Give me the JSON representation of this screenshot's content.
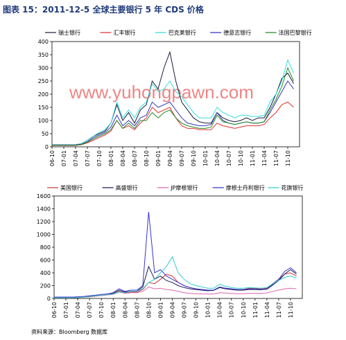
{
  "title": "图表 15：2011-12-5 全球主要银行 5 年 CDS 价格",
  "watermark": "www.yuhongpawn.com",
  "source": "资料来源：Bloomberg 数据库",
  "chart_data": [
    {
      "type": "line",
      "categories": [
        "06-10",
        null,
        "07-01",
        null,
        "07-04",
        null,
        "07-07",
        null,
        "07-10",
        null,
        "08-01",
        null,
        "08-04",
        null,
        "08-07",
        null,
        "08-10",
        null,
        "09-01",
        null,
        "09-04",
        null,
        "09-07",
        null,
        "09-10",
        null,
        "10-01",
        null,
        "10-04",
        null,
        "10-07",
        null,
        "10-10",
        null,
        "11-01",
        null,
        "11-04",
        null,
        "11-07",
        null,
        "11-10",
        null
      ],
      "ylim": [
        0,
        400
      ],
      "yticks": [
        0,
        50,
        100,
        150,
        200,
        250,
        300,
        350,
        400
      ],
      "grid": false,
      "series": [
        {
          "name": "瑞士银行",
          "color": "#1a1a3a",
          "values": [
            8,
            8,
            8,
            8,
            8,
            12,
            25,
            40,
            50,
            60,
            90,
            160,
            100,
            130,
            90,
            140,
            160,
            250,
            220,
            300,
            360,
            250,
            170,
            140,
            110,
            95,
            90,
            90,
            130,
            110,
            100,
            95,
            100,
            110,
            100,
            110,
            110,
            150,
            200,
            260,
            280,
            240
          ]
        },
        {
          "name": "汇丰银行",
          "color": "#e03030",
          "values": [
            5,
            5,
            5,
            5,
            5,
            8,
            15,
            25,
            35,
            45,
            60,
            100,
            70,
            80,
            65,
            90,
            110,
            150,
            130,
            140,
            150,
            110,
            80,
            70,
            70,
            65,
            65,
            65,
            90,
            80,
            75,
            70,
            75,
            80,
            80,
            80,
            85,
            110,
            130,
            160,
            170,
            150
          ]
        },
        {
          "name": "巴克莱银行",
          "color": "#33dddd",
          "values": [
            8,
            8,
            8,
            8,
            8,
            12,
            25,
            40,
            55,
            65,
            90,
            170,
            110,
            140,
            110,
            150,
            170,
            240,
            210,
            220,
            250,
            210,
            190,
            160,
            130,
            110,
            110,
            110,
            150,
            130,
            120,
            110,
            120,
            120,
            115,
            115,
            120,
            170,
            200,
            250,
            330,
            280
          ]
        },
        {
          "name": "德意志银行",
          "color": "#3333bb",
          "values": [
            7,
            7,
            7,
            7,
            7,
            10,
            20,
            35,
            45,
            55,
            75,
            120,
            80,
            100,
            80,
            110,
            120,
            170,
            150,
            160,
            170,
            140,
            110,
            90,
            85,
            80,
            80,
            85,
            130,
            100,
            90,
            85,
            90,
            95,
            90,
            90,
            95,
            130,
            170,
            210,
            250,
            220
          ]
        },
        {
          "name": "法国巴黎银行",
          "color": "#228b22",
          "values": [
            6,
            6,
            6,
            6,
            6,
            9,
            18,
            30,
            40,
            50,
            65,
            100,
            70,
            90,
            70,
            100,
            100,
            130,
            110,
            130,
            140,
            110,
            90,
            80,
            75,
            70,
            70,
            75,
            120,
            95,
            90,
            85,
            90,
            95,
            90,
            90,
            95,
            140,
            180,
            230,
            300,
            250
          ]
        }
      ]
    },
    {
      "type": "line",
      "categories": [
        "06-10",
        null,
        "07-01",
        null,
        "07-04",
        null,
        "07-07",
        null,
        "07-10",
        null,
        "08-01",
        null,
        "08-04",
        null,
        "08-07",
        null,
        "08-10",
        null,
        "09-01",
        null,
        "09-04",
        null,
        "09-07",
        null,
        "09-10",
        null,
        "10-01",
        null,
        "10-04",
        null,
        "10-07",
        null,
        "10-10",
        null,
        "11-01",
        null,
        "11-04",
        null,
        "11-07",
        null,
        "11-10",
        null
      ],
      "ylim": [
        0,
        1600
      ],
      "yticks": [
        0,
        200,
        400,
        600,
        800,
        1000,
        1200,
        1400,
        1600
      ],
      "grid": false,
      "series": [
        {
          "name": "美国银行",
          "color": "#cc3333",
          "values": [
            10,
            10,
            10,
            10,
            12,
            18,
            25,
            35,
            45,
            55,
            65,
            110,
            90,
            100,
            100,
            140,
            250,
            230,
            300,
            380,
            350,
            250,
            200,
            170,
            150,
            140,
            130,
            130,
            170,
            160,
            150,
            140,
            140,
            160,
            160,
            150,
            160,
            230,
            300,
            380,
            400,
            350
          ]
        },
        {
          "name": "高盛银行",
          "color": "#1a1a5a",
          "values": [
            20,
            20,
            20,
            20,
            25,
            30,
            40,
            50,
            60,
            70,
            80,
            130,
            100,
            110,
            110,
            180,
            500,
            300,
            350,
            280,
            250,
            200,
            170,
            150,
            140,
            130,
            120,
            125,
            170,
            150,
            140,
            130,
            130,
            140,
            140,
            135,
            145,
            210,
            280,
            380,
            450,
            380
          ]
        },
        {
          "name": "JP摩根银行",
          "color": "#dd66aa",
          "values": [
            15,
            15,
            15,
            15,
            18,
            22,
            30,
            40,
            45,
            55,
            65,
            100,
            80,
            90,
            90,
            110,
            180,
            150,
            160,
            140,
            130,
            110,
            90,
            80,
            75,
            70,
            70,
            70,
            90,
            85,
            80,
            75,
            75,
            80,
            80,
            80,
            85,
            110,
            130,
            150,
            160,
            150
          ]
        },
        {
          "name": "摩根士丹利银行",
          "color": "#3333cc",
          "values": [
            20,
            20,
            20,
            20,
            25,
            30,
            40,
            50,
            60,
            70,
            90,
            150,
            110,
            130,
            130,
            200,
            1350,
            400,
            450,
            350,
            300,
            250,
            200,
            170,
            150,
            140,
            130,
            130,
            180,
            160,
            150,
            140,
            140,
            150,
            150,
            140,
            150,
            220,
            300,
            420,
            480,
            400
          ]
        },
        {
          "name": "花旗银行",
          "color": "#33cccc",
          "values": [
            10,
            10,
            10,
            10,
            15,
            20,
            30,
            40,
            50,
            60,
            70,
            100,
            90,
            110,
            110,
            150,
            250,
            300,
            400,
            500,
            650,
            400,
            300,
            230,
            200,
            180,
            160,
            160,
            220,
            190,
            170,
            160,
            160,
            170,
            165,
            160,
            170,
            230,
            280,
            330,
            350,
            320
          ]
        }
      ]
    }
  ]
}
